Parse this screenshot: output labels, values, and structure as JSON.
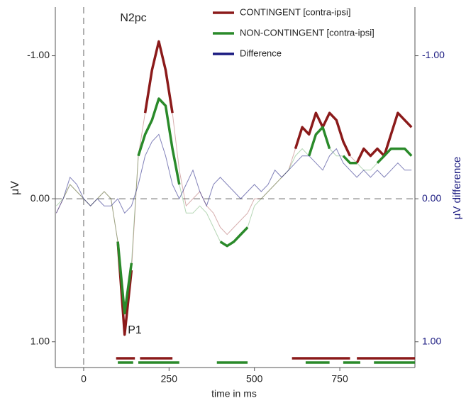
{
  "chart_data": {
    "type": "line",
    "x_label": "time in ms",
    "y_label": "μV",
    "y2_label": "μV difference",
    "annotations": [
      "N2pc",
      "P1"
    ],
    "x": [
      -80,
      -60,
      -40,
      -20,
      0,
      20,
      40,
      60,
      80,
      100,
      120,
      140,
      160,
      180,
      200,
      220,
      240,
      260,
      280,
      300,
      320,
      340,
      360,
      380,
      400,
      420,
      440,
      460,
      480,
      500,
      520,
      540,
      560,
      580,
      600,
      620,
      640,
      660,
      680,
      700,
      720,
      740,
      760,
      780,
      800,
      820,
      840,
      860,
      880,
      900,
      920,
      940,
      960
    ],
    "xlim": [
      -83,
      970
    ],
    "xticks": [
      0,
      250,
      500,
      750
    ],
    "ylim": [
      1.18,
      -1.34
    ],
    "yticks": [
      {
        "value": -1,
        "label": "-1.00"
      },
      {
        "value": 0,
        "label": "0.00"
      },
      {
        "value": 1,
        "label": "1.00"
      }
    ],
    "y2lim": [
      1.18,
      -1.34
    ],
    "y2ticks": [
      {
        "value": -1,
        "label": "-1.00"
      },
      {
        "value": 0,
        "label": "0.00"
      },
      {
        "value": 1,
        "label": "1.00"
      }
    ],
    "series": [
      {
        "name": "CONTINGENT [contra-ipsi]",
        "color": "#8b1a1a",
        "values": [
          0.1,
          0.0,
          -0.1,
          -0.05,
          0.0,
          0.05,
          0.0,
          -0.05,
          0.0,
          0.3,
          0.95,
          0.5,
          -0.3,
          -0.6,
          -0.9,
          -1.1,
          -0.9,
          -0.6,
          -0.2,
          0.05,
          0.0,
          -0.05,
          0.05,
          0.1,
          0.2,
          0.25,
          0.2,
          0.15,
          0.1,
          0.0,
          0.0,
          -0.05,
          -0.1,
          -0.15,
          -0.2,
          -0.35,
          -0.5,
          -0.45,
          -0.6,
          -0.5,
          -0.6,
          -0.55,
          -0.4,
          -0.3,
          -0.25,
          -0.35,
          -0.3,
          -0.35,
          -0.3,
          -0.45,
          -0.6,
          -0.55,
          -0.5
        ],
        "significant": [
          [
            95,
            150
          ],
          [
            165,
            260
          ],
          [
            610,
            780
          ],
          [
            800,
            970
          ]
        ]
      },
      {
        "name": "NON-CONTINGENT [contra-ipsi]",
        "color": "#2a8a2a",
        "values": [
          0.05,
          0.0,
          -0.1,
          -0.05,
          0.0,
          0.05,
          0.0,
          -0.05,
          0.0,
          0.3,
          0.8,
          0.45,
          -0.3,
          -0.45,
          -0.55,
          -0.7,
          -0.65,
          -0.35,
          -0.1,
          0.1,
          0.1,
          0.05,
          0.1,
          0.2,
          0.3,
          0.33,
          0.3,
          0.25,
          0.2,
          0.05,
          0.0,
          -0.05,
          -0.1,
          -0.15,
          -0.2,
          -0.3,
          -0.35,
          -0.3,
          -0.45,
          -0.5,
          -0.35,
          -0.3,
          -0.3,
          -0.25,
          -0.25,
          -0.2,
          -0.2,
          -0.25,
          -0.3,
          -0.35,
          -0.35,
          -0.35,
          -0.3
        ],
        "significant": [
          [
            100,
            145
          ],
          [
            160,
            280
          ],
          [
            390,
            480
          ],
          [
            650,
            720
          ],
          [
            760,
            810
          ],
          [
            850,
            970
          ]
        ]
      },
      {
        "name": "Difference",
        "color": "#1a1a80",
        "axis": "y2",
        "values": [
          0.1,
          0.0,
          -0.15,
          -0.1,
          0.0,
          0.05,
          0.0,
          0.05,
          0.05,
          0.0,
          0.1,
          0.05,
          -0.1,
          -0.3,
          -0.4,
          -0.45,
          -0.3,
          -0.1,
          0.0,
          -0.1,
          -0.2,
          -0.05,
          0.05,
          -0.1,
          -0.15,
          -0.1,
          -0.05,
          0.0,
          -0.05,
          -0.1,
          -0.05,
          -0.1,
          -0.2,
          -0.15,
          -0.2,
          -0.25,
          -0.3,
          -0.3,
          -0.25,
          -0.2,
          -0.3,
          -0.35,
          -0.25,
          -0.2,
          -0.15,
          -0.2,
          -0.15,
          -0.2,
          -0.15,
          -0.2,
          -0.25,
          -0.2,
          -0.2
        ]
      }
    ]
  }
}
